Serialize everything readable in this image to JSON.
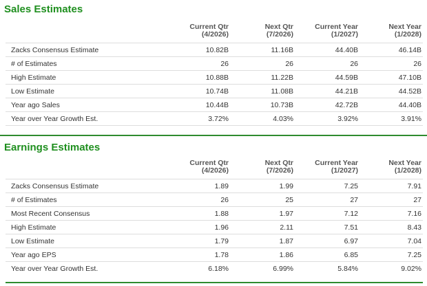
{
  "sales": {
    "title": "Sales Estimates",
    "columns": [
      {
        "line1": "Current Qtr",
        "line2": "(4/2026)"
      },
      {
        "line1": "Next Qtr",
        "line2": "(7/2026)"
      },
      {
        "line1": "Current Year",
        "line2": "(1/2027)"
      },
      {
        "line1": "Next Year",
        "line2": "(1/2028)"
      }
    ],
    "rows": [
      {
        "label": "Zacks Consensus Estimate",
        "values": [
          "10.82B",
          "11.16B",
          "44.40B",
          "46.14B"
        ]
      },
      {
        "label": "# of Estimates",
        "values": [
          "26",
          "26",
          "26",
          "26"
        ]
      },
      {
        "label": "High Estimate",
        "values": [
          "10.88B",
          "11.22B",
          "44.59B",
          "47.10B"
        ]
      },
      {
        "label": "Low Estimate",
        "values": [
          "10.74B",
          "11.08B",
          "44.21B",
          "44.52B"
        ]
      },
      {
        "label": "Year ago Sales",
        "values": [
          "10.44B",
          "10.73B",
          "42.72B",
          "44.40B"
        ]
      },
      {
        "label": "Year over Year Growth Est.",
        "values": [
          "3.72%",
          "4.03%",
          "3.92%",
          "3.91%"
        ]
      }
    ]
  },
  "earnings": {
    "title": "Earnings Estimates",
    "columns": [
      {
        "line1": "Current Qtr",
        "line2": "(4/2026)"
      },
      {
        "line1": "Next Qtr",
        "line2": "(7/2026)"
      },
      {
        "line1": "Current Year",
        "line2": "(1/2027)"
      },
      {
        "line1": "Next Year",
        "line2": "(1/2028)"
      }
    ],
    "rows": [
      {
        "label": "Zacks Consensus Estimate",
        "values": [
          "1.89",
          "1.99",
          "7.25",
          "7.91"
        ]
      },
      {
        "label": "# of Estimates",
        "values": [
          "26",
          "25",
          "27",
          "27"
        ]
      },
      {
        "label": "Most Recent Consensus",
        "values": [
          "1.88",
          "1.97",
          "7.12",
          "7.16"
        ]
      },
      {
        "label": "High Estimate",
        "values": [
          "1.96",
          "2.11",
          "7.51",
          "8.43"
        ]
      },
      {
        "label": "Low Estimate",
        "values": [
          "1.79",
          "1.87",
          "6.97",
          "7.04"
        ]
      },
      {
        "label": "Year ago EPS",
        "values": [
          "1.78",
          "1.86",
          "6.85",
          "7.25"
        ]
      },
      {
        "label": "Year over Year Growth Est.",
        "values": [
          "6.18%",
          "6.99%",
          "5.84%",
          "9.02%"
        ]
      }
    ]
  },
  "colors": {
    "title_green": "#1f8f1f",
    "rule_green": "#2e8b2e",
    "row_border": "#dddddd"
  }
}
